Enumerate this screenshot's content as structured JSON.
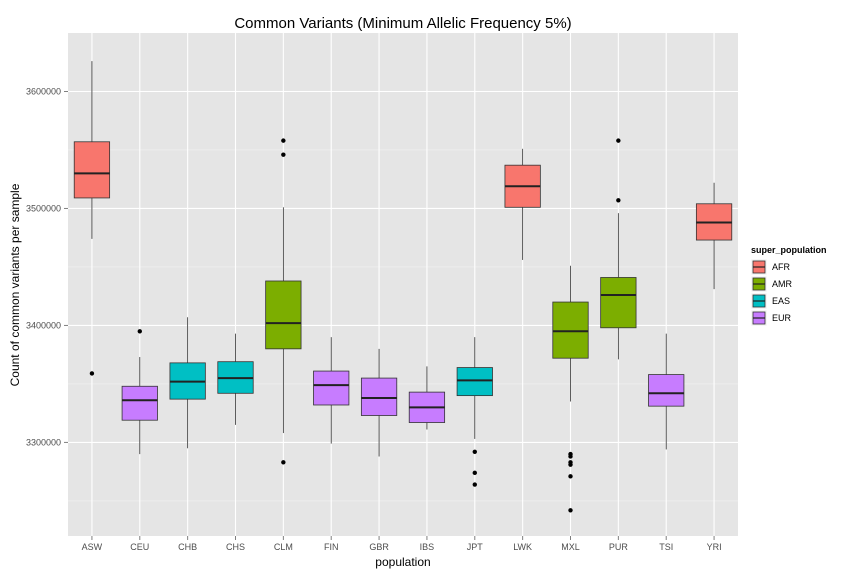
{
  "chart_data": {
    "type": "boxplot",
    "title": "Common Variants (Minimum Allelic Frequency 5%)",
    "xlabel": "population",
    "ylabel": "Count of common variants per sample",
    "ylim": [
      3220000,
      3650000
    ],
    "yticks": [
      3300000,
      3400000,
      3500000,
      3600000
    ],
    "ytick_labels": [
      "3300000",
      "3400000",
      "3500000",
      "3600000"
    ],
    "grid": true,
    "legend": {
      "title": "super_population",
      "position": "right",
      "entries": [
        {
          "label": "AFR",
          "color": "#F8766D"
        },
        {
          "label": "AMR",
          "color": "#7CAE00"
        },
        {
          "label": "EAS",
          "color": "#00BFC4"
        },
        {
          "label": "EUR",
          "color": "#C77CFF"
        }
      ]
    },
    "categories": [
      "ASW",
      "CEU",
      "CHB",
      "CHS",
      "CLM",
      "FIN",
      "GBR",
      "IBS",
      "JPT",
      "LWK",
      "MXL",
      "PUR",
      "TSI",
      "YRI"
    ],
    "boxes": [
      {
        "population": "ASW",
        "super_population": "AFR",
        "whisker_low": 3474000,
        "q1": 3509000,
        "median": 3530000,
        "q3": 3557000,
        "whisker_high": 3626000,
        "outliers": [
          3359000
        ]
      },
      {
        "population": "CEU",
        "super_population": "EUR",
        "whisker_low": 3290000,
        "q1": 3319000,
        "median": 3336000,
        "q3": 3348000,
        "whisker_high": 3373000,
        "outliers": [
          3395000
        ]
      },
      {
        "population": "CHB",
        "super_population": "EAS",
        "whisker_low": 3295000,
        "q1": 3337000,
        "median": 3352000,
        "q3": 3368000,
        "whisker_high": 3407000,
        "outliers": []
      },
      {
        "population": "CHS",
        "super_population": "EAS",
        "whisker_low": 3315000,
        "q1": 3342000,
        "median": 3355000,
        "q3": 3369000,
        "whisker_high": 3393000,
        "outliers": []
      },
      {
        "population": "CLM",
        "super_population": "AMR",
        "whisker_low": 3308000,
        "q1": 3380000,
        "median": 3402000,
        "q3": 3438000,
        "whisker_high": 3501000,
        "outliers": [
          3558000,
          3546000,
          3283000
        ]
      },
      {
        "population": "FIN",
        "super_population": "EUR",
        "whisker_low": 3299000,
        "q1": 3332000,
        "median": 3349000,
        "q3": 3361000,
        "whisker_high": 3390000,
        "outliers": []
      },
      {
        "population": "GBR",
        "super_population": "EUR",
        "whisker_low": 3288000,
        "q1": 3323000,
        "median": 3338000,
        "q3": 3355000,
        "whisker_high": 3380000,
        "outliers": []
      },
      {
        "population": "IBS",
        "super_population": "EUR",
        "whisker_low": 3311000,
        "q1": 3317000,
        "median": 3330000,
        "q3": 3343000,
        "whisker_high": 3365000,
        "outliers": []
      },
      {
        "population": "JPT",
        "super_population": "EAS",
        "whisker_low": 3303000,
        "q1": 3340000,
        "median": 3353000,
        "q3": 3364000,
        "whisker_high": 3390000,
        "outliers": [
          3292000,
          3274000,
          3264000
        ]
      },
      {
        "population": "LWK",
        "super_population": "AFR",
        "whisker_low": 3456000,
        "q1": 3501000,
        "median": 3519000,
        "q3": 3537000,
        "whisker_high": 3551000,
        "outliers": []
      },
      {
        "population": "MXL",
        "super_population": "AMR",
        "whisker_low": 3335000,
        "q1": 3372000,
        "median": 3395000,
        "q3": 3420000,
        "whisker_high": 3451000,
        "outliers": [
          3290000,
          3288000,
          3283000,
          3281000,
          3271000,
          3242000
        ]
      },
      {
        "population": "PUR",
        "super_population": "AMR",
        "whisker_low": 3371000,
        "q1": 3398000,
        "median": 3426000,
        "q3": 3441000,
        "whisker_high": 3496000,
        "outliers": [
          3558000,
          3507000
        ]
      },
      {
        "population": "TSI",
        "super_population": "EUR",
        "whisker_low": 3294000,
        "q1": 3331000,
        "median": 3342000,
        "q3": 3358000,
        "whisker_high": 3393000,
        "outliers": []
      },
      {
        "population": "YRI",
        "super_population": "AFR",
        "whisker_low": 3431000,
        "q1": 3473000,
        "median": 3488000,
        "q3": 3504000,
        "whisker_high": 3522000,
        "outliers": []
      }
    ]
  }
}
